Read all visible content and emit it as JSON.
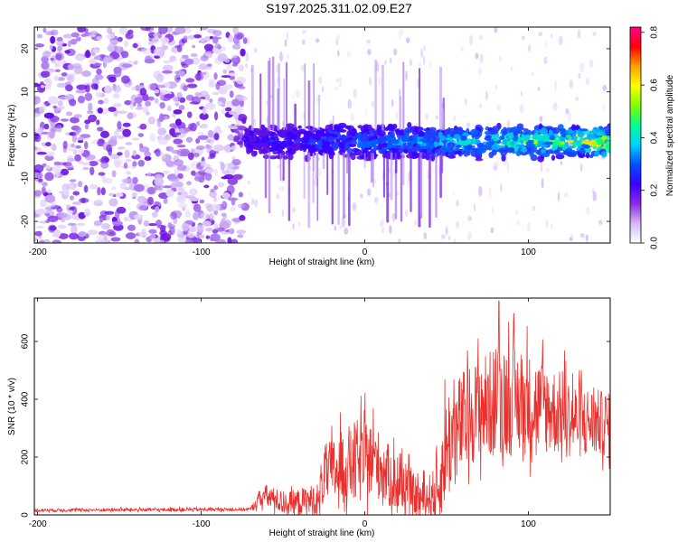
{
  "title": "S197.2025.311.02.09.E27",
  "chart_data": [
    {
      "type": "heatmap",
      "name": "spectrogram",
      "xlabel": "Height of straight line (km)",
      "ylabel": "Frequency (Hz)",
      "xlim": [
        -202,
        150
      ],
      "ylim": [
        -25,
        25
      ],
      "xticks": [
        -200,
        -100,
        0,
        100
      ],
      "yticks": [
        -20,
        -10,
        0,
        10,
        20
      ],
      "colorbar": {
        "label": "Normalized spectral amplitude",
        "range": [
          0.0,
          0.82
        ],
        "ticks": [
          0.0,
          0.2,
          0.4,
          0.6,
          0.8
        ],
        "colormap": [
          "#ffffff",
          "#d4b8f8",
          "#8a2be2",
          "#3a00ff",
          "#0050ff",
          "#00d0ff",
          "#00ff90",
          "#80ff00",
          "#ffff00",
          "#ffa000",
          "#ff0000",
          "#ff0090"
        ]
      },
      "noise_region_x": [
        -202,
        -73
      ],
      "signal_band": {
        "x_start": -73,
        "x_end": 150,
        "center_hz": -1.5,
        "halfwidth_hz": 3.5
      }
    },
    {
      "type": "line",
      "name": "snr",
      "xlabel": "Height of straight line (km)",
      "ylabel": "SNR (10 * v/v)",
      "xlim": [
        -202,
        150
      ],
      "ylim": [
        0,
        750
      ],
      "xticks": [
        -200,
        -100,
        0,
        100
      ],
      "yticks": [
        0,
        200,
        400,
        600
      ],
      "color": "#e8302c",
      "envelope": [
        {
          "x": -202,
          "mean": 15,
          "amp": 12
        },
        {
          "x": -70,
          "mean": 18,
          "amp": 12
        },
        {
          "x": -62,
          "mean": 60,
          "amp": 80
        },
        {
          "x": -48,
          "mean": 30,
          "amp": 80
        },
        {
          "x": -28,
          "mean": 40,
          "amp": 120
        },
        {
          "x": -25,
          "mean": 120,
          "amp": 200
        },
        {
          "x": -5,
          "mean": 150,
          "amp": 300
        },
        {
          "x": 5,
          "mean": 170,
          "amp": 250
        },
        {
          "x": 20,
          "mean": 80,
          "amp": 200
        },
        {
          "x": 35,
          "mean": 40,
          "amp": 120
        },
        {
          "x": 45,
          "mean": 60,
          "amp": 200
        },
        {
          "x": 50,
          "mean": 200,
          "amp": 400
        },
        {
          "x": 65,
          "mean": 320,
          "amp": 350
        },
        {
          "x": 85,
          "mean": 360,
          "amp": 400
        },
        {
          "x": 110,
          "mean": 340,
          "amp": 320
        },
        {
          "x": 130,
          "mean": 300,
          "amp": 260
        },
        {
          "x": 150,
          "mean": 290,
          "amp": 220
        }
      ],
      "peak": {
        "x": 82,
        "y": 740
      }
    }
  ]
}
